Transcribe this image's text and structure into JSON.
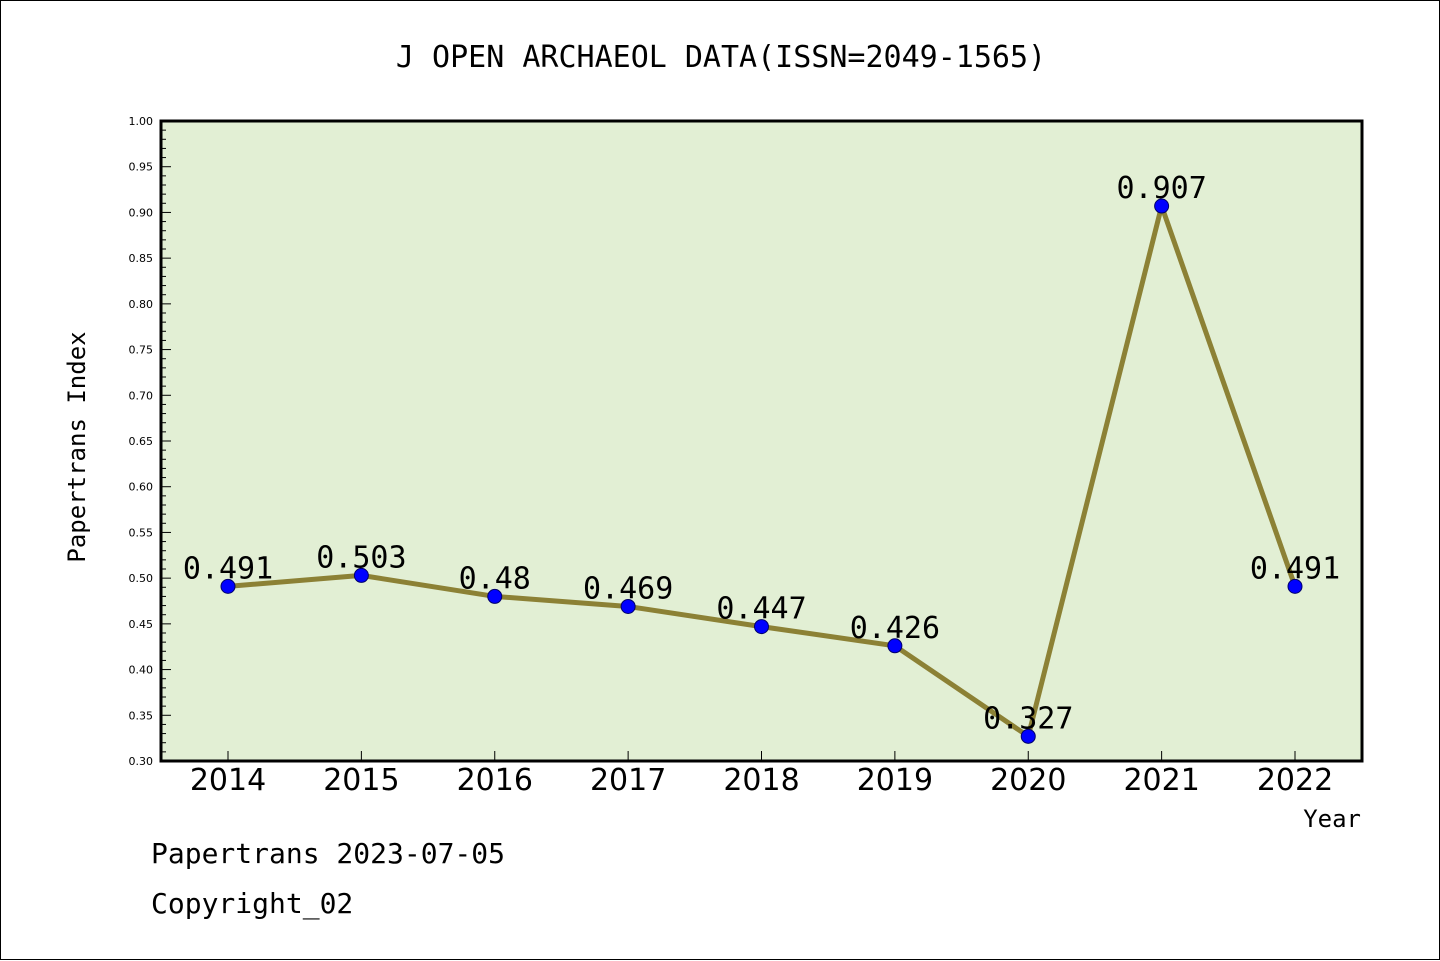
{
  "chart_data": {
    "type": "line",
    "title": "J OPEN ARCHAEOL DATA(ISSN=2049-1565)",
    "xlabel": "Year",
    "ylabel": "Papertrans Index",
    "categories": [
      "2014",
      "2015",
      "2016",
      "2017",
      "2018",
      "2019",
      "2020",
      "2021",
      "2022"
    ],
    "values": [
      0.491,
      0.503,
      0.48,
      0.469,
      0.447,
      0.426,
      0.327,
      0.907,
      0.491
    ],
    "data_labels": [
      "0.491",
      "0.503",
      "0.48",
      "0.469",
      "0.447",
      "0.426",
      "0.327",
      "0.907",
      "0.491"
    ],
    "ylim": [
      0.3,
      1.0
    ],
    "yticks": [
      "0.30",
      "0.35",
      "0.40",
      "0.45",
      "0.50",
      "0.55",
      "0.60",
      "0.65",
      "0.70",
      "0.75",
      "0.80",
      "0.85",
      "0.90",
      "0.95",
      "1.00"
    ],
    "grid": false,
    "legend": "none",
    "colors": {
      "plot_background": "#e2efd4",
      "line": "#8c8135",
      "marker": "#0000ff"
    }
  },
  "footer": {
    "line1": "Papertrans 2023-07-05",
    "line2": "Copyright_02"
  }
}
